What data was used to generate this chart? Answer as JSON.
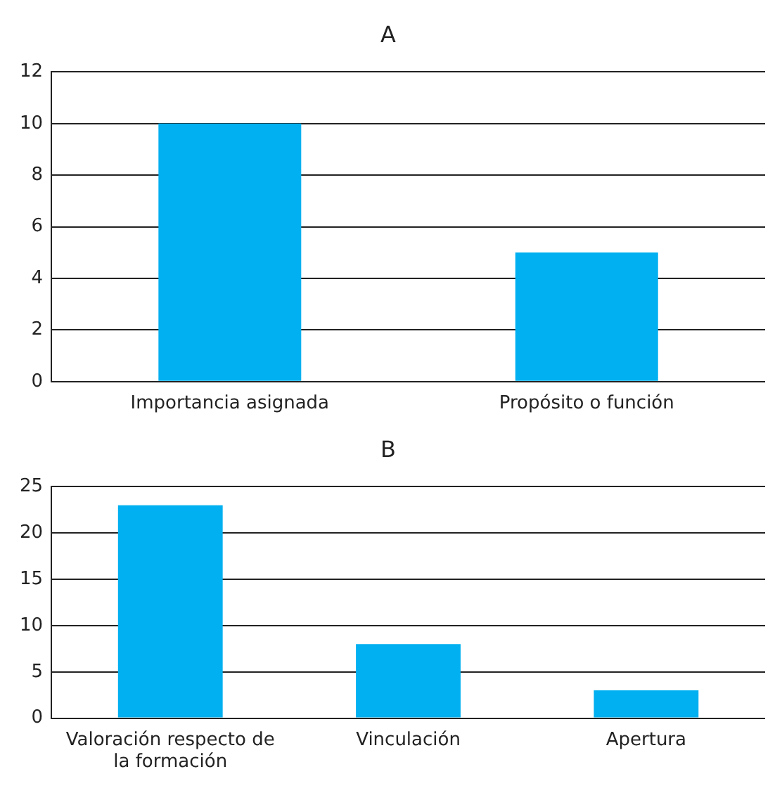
{
  "chart_data": [
    {
      "type": "bar",
      "title": "A",
      "categories": [
        "Importancia asignada",
        "Propósito o función"
      ],
      "values": [
        10,
        5
      ],
      "color": "#00b0f0",
      "ylim": [
        0,
        12
      ],
      "yticks": [
        0,
        2,
        4,
        6,
        8,
        10,
        12
      ],
      "grid": "y"
    },
    {
      "type": "bar",
      "title": "B",
      "categories": [
        "Valoración respecto de la formación",
        "Vinculación",
        "Apertura"
      ],
      "values": [
        23,
        8,
        3
      ],
      "color": "#00b0f0",
      "ylim": [
        0,
        25
      ],
      "yticks": [
        0,
        5,
        10,
        15,
        20,
        25
      ],
      "grid": "y"
    }
  ]
}
